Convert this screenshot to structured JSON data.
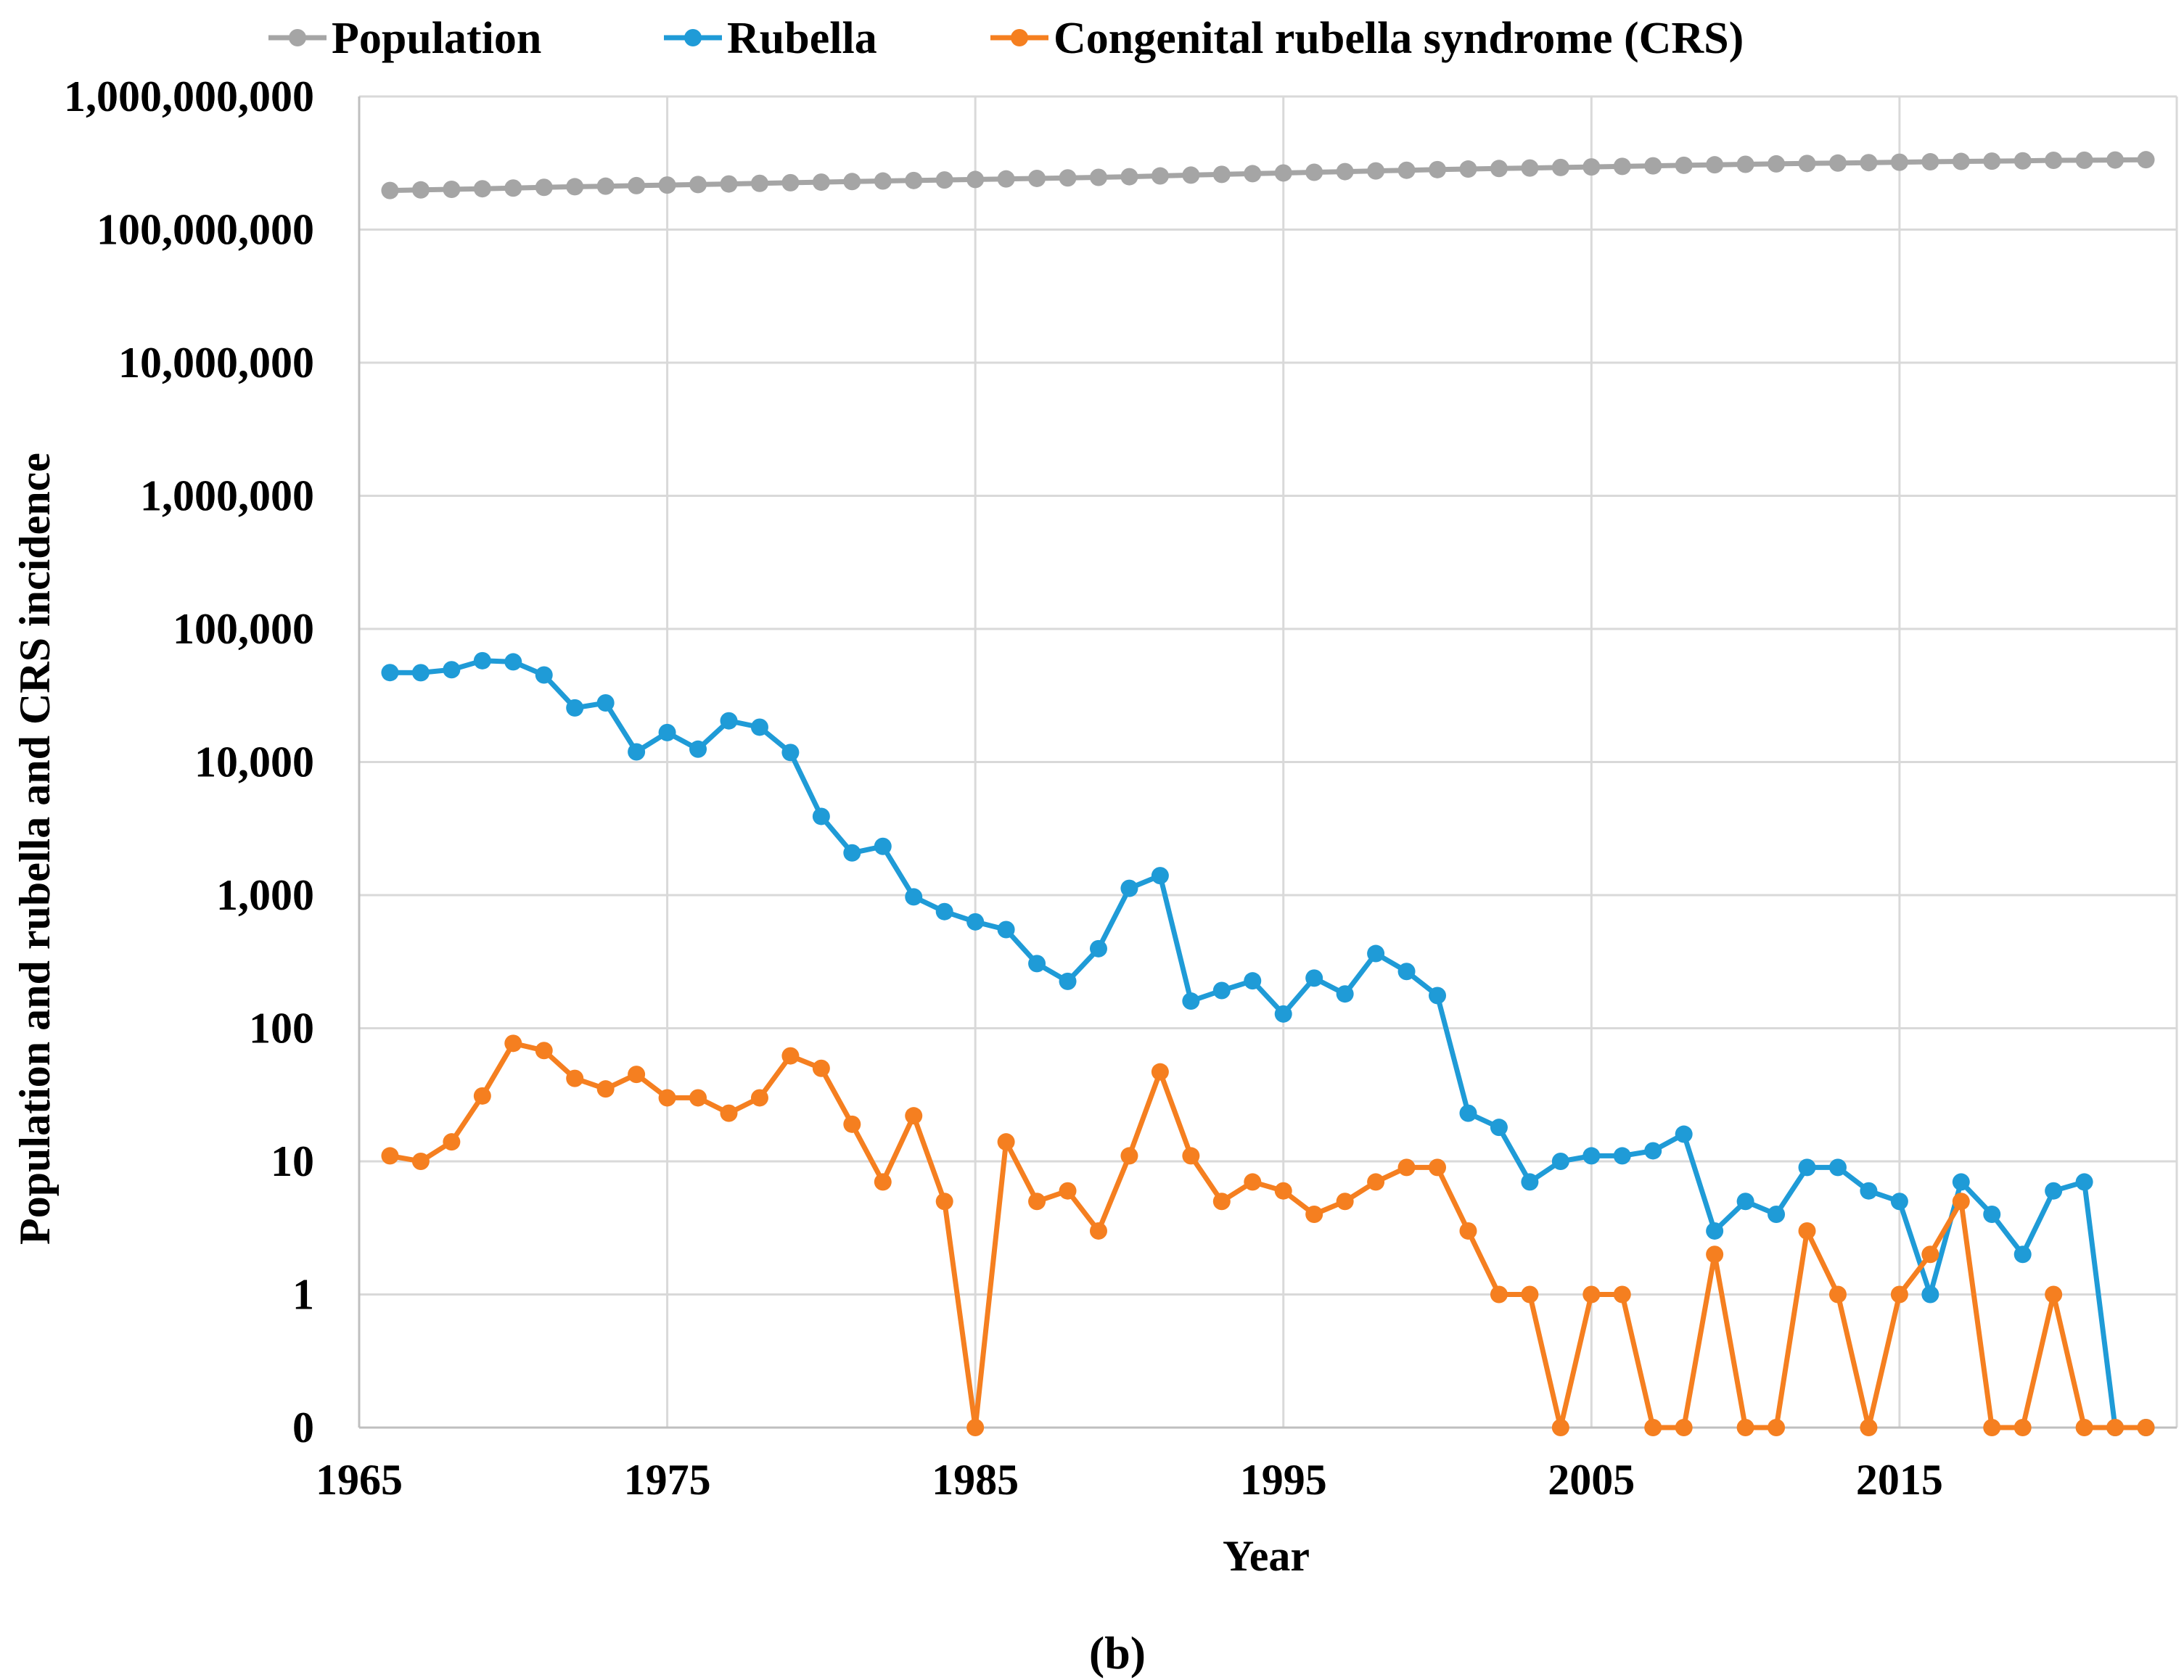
{
  "chart_data": {
    "type": "line",
    "y_scale": "log",
    "xlabel": "Year",
    "ylabel": "Population and rubella and CRS incidence",
    "caption": "(b)",
    "xlim": [
      1965,
      2024
    ],
    "x_ticks": [
      1965,
      1975,
      1985,
      1995,
      2005,
      2015
    ],
    "x_tick_labels": [
      "1965",
      "1975",
      "1985",
      "1995",
      "2005",
      "2015"
    ],
    "y_ticks": [
      0,
      1,
      10,
      100,
      1000,
      10000,
      100000,
      1000000,
      10000000,
      100000000,
      1000000000
    ],
    "y_tick_labels": [
      "0",
      "1",
      "10",
      "100",
      "1,000",
      "10,000",
      "100,000",
      "1,000,000",
      "10,000,000",
      "100,000,000",
      "1,000,000,000"
    ],
    "legend_position": "top",
    "x": [
      1966,
      1967,
      1968,
      1969,
      1970,
      1971,
      1972,
      1973,
      1974,
      1975,
      1976,
      1977,
      1978,
      1979,
      1980,
      1981,
      1982,
      1983,
      1984,
      1985,
      1986,
      1987,
      1988,
      1989,
      1990,
      1991,
      1992,
      1993,
      1994,
      1995,
      1996,
      1997,
      1998,
      1999,
      2000,
      2001,
      2002,
      2003,
      2004,
      2005,
      2006,
      2007,
      2008,
      2009,
      2010,
      2011,
      2012,
      2013,
      2014,
      2015,
      2016,
      2017,
      2018,
      2019,
      2020,
      2021,
      2022,
      2023
    ],
    "series": [
      {
        "name": "Population",
        "color": "#a5a5a5",
        "values": [
          196560000,
          198712000,
          200706000,
          202677000,
          205052000,
          207661000,
          209896000,
          211909000,
          213854000,
          215973000,
          218035000,
          220239000,
          222585000,
          225055000,
          227225000,
          229466000,
          231664000,
          233792000,
          235825000,
          237924000,
          240133000,
          242289000,
          244499000,
          246819000,
          249623000,
          252981000,
          256514000,
          259919000,
          263126000,
          266278000,
          269394000,
          272647000,
          275854000,
          279040000,
          282162000,
          284969000,
          287625000,
          290108000,
          292805000,
          295517000,
          298380000,
          301231000,
          304094000,
          306772000,
          309327000,
          311583000,
          313878000,
          316060000,
          318386000,
          320739000,
          323072000,
          325122000,
          326838000,
          328330000,
          331501000,
          332032000,
          333288000,
          334914000
        ]
      },
      {
        "name": "Rubella",
        "color": "#1f9bd7",
        "values": [
          46975,
          46888,
          49371,
          57686,
          56552,
          45086,
          25507,
          27804,
          11917,
          16652,
          12491,
          20395,
          18269,
          11795,
          3904,
          2077,
          2325,
          970,
          752,
          630,
          551,
          306,
          225,
          396,
          1125,
          1401,
          160,
          192,
          227,
          128,
          238,
          181,
          364,
          267,
          176,
          23,
          18,
          7,
          10,
          11,
          11,
          12,
          16,
          3,
          5,
          4,
          9,
          9,
          6,
          5,
          1,
          7,
          4,
          2,
          6,
          7,
          0,
          0
        ]
      },
      {
        "name": "Congenital rubella syndrome (CRS)",
        "color": "#f57f20",
        "values": [
          11,
          10,
          14,
          31,
          77,
          68,
          42,
          35,
          45,
          30,
          30,
          23,
          30,
          62,
          50,
          19,
          7,
          22,
          5,
          0,
          14,
          5,
          6,
          3,
          11,
          47,
          11,
          5,
          7,
          6,
          4,
          5,
          7,
          9,
          9,
          3,
          1,
          1,
          0,
          1,
          1,
          0,
          0,
          2,
          0,
          0,
          3,
          1,
          0,
          1,
          2,
          5,
          0,
          0,
          1,
          0,
          0,
          0
        ]
      }
    ]
  }
}
